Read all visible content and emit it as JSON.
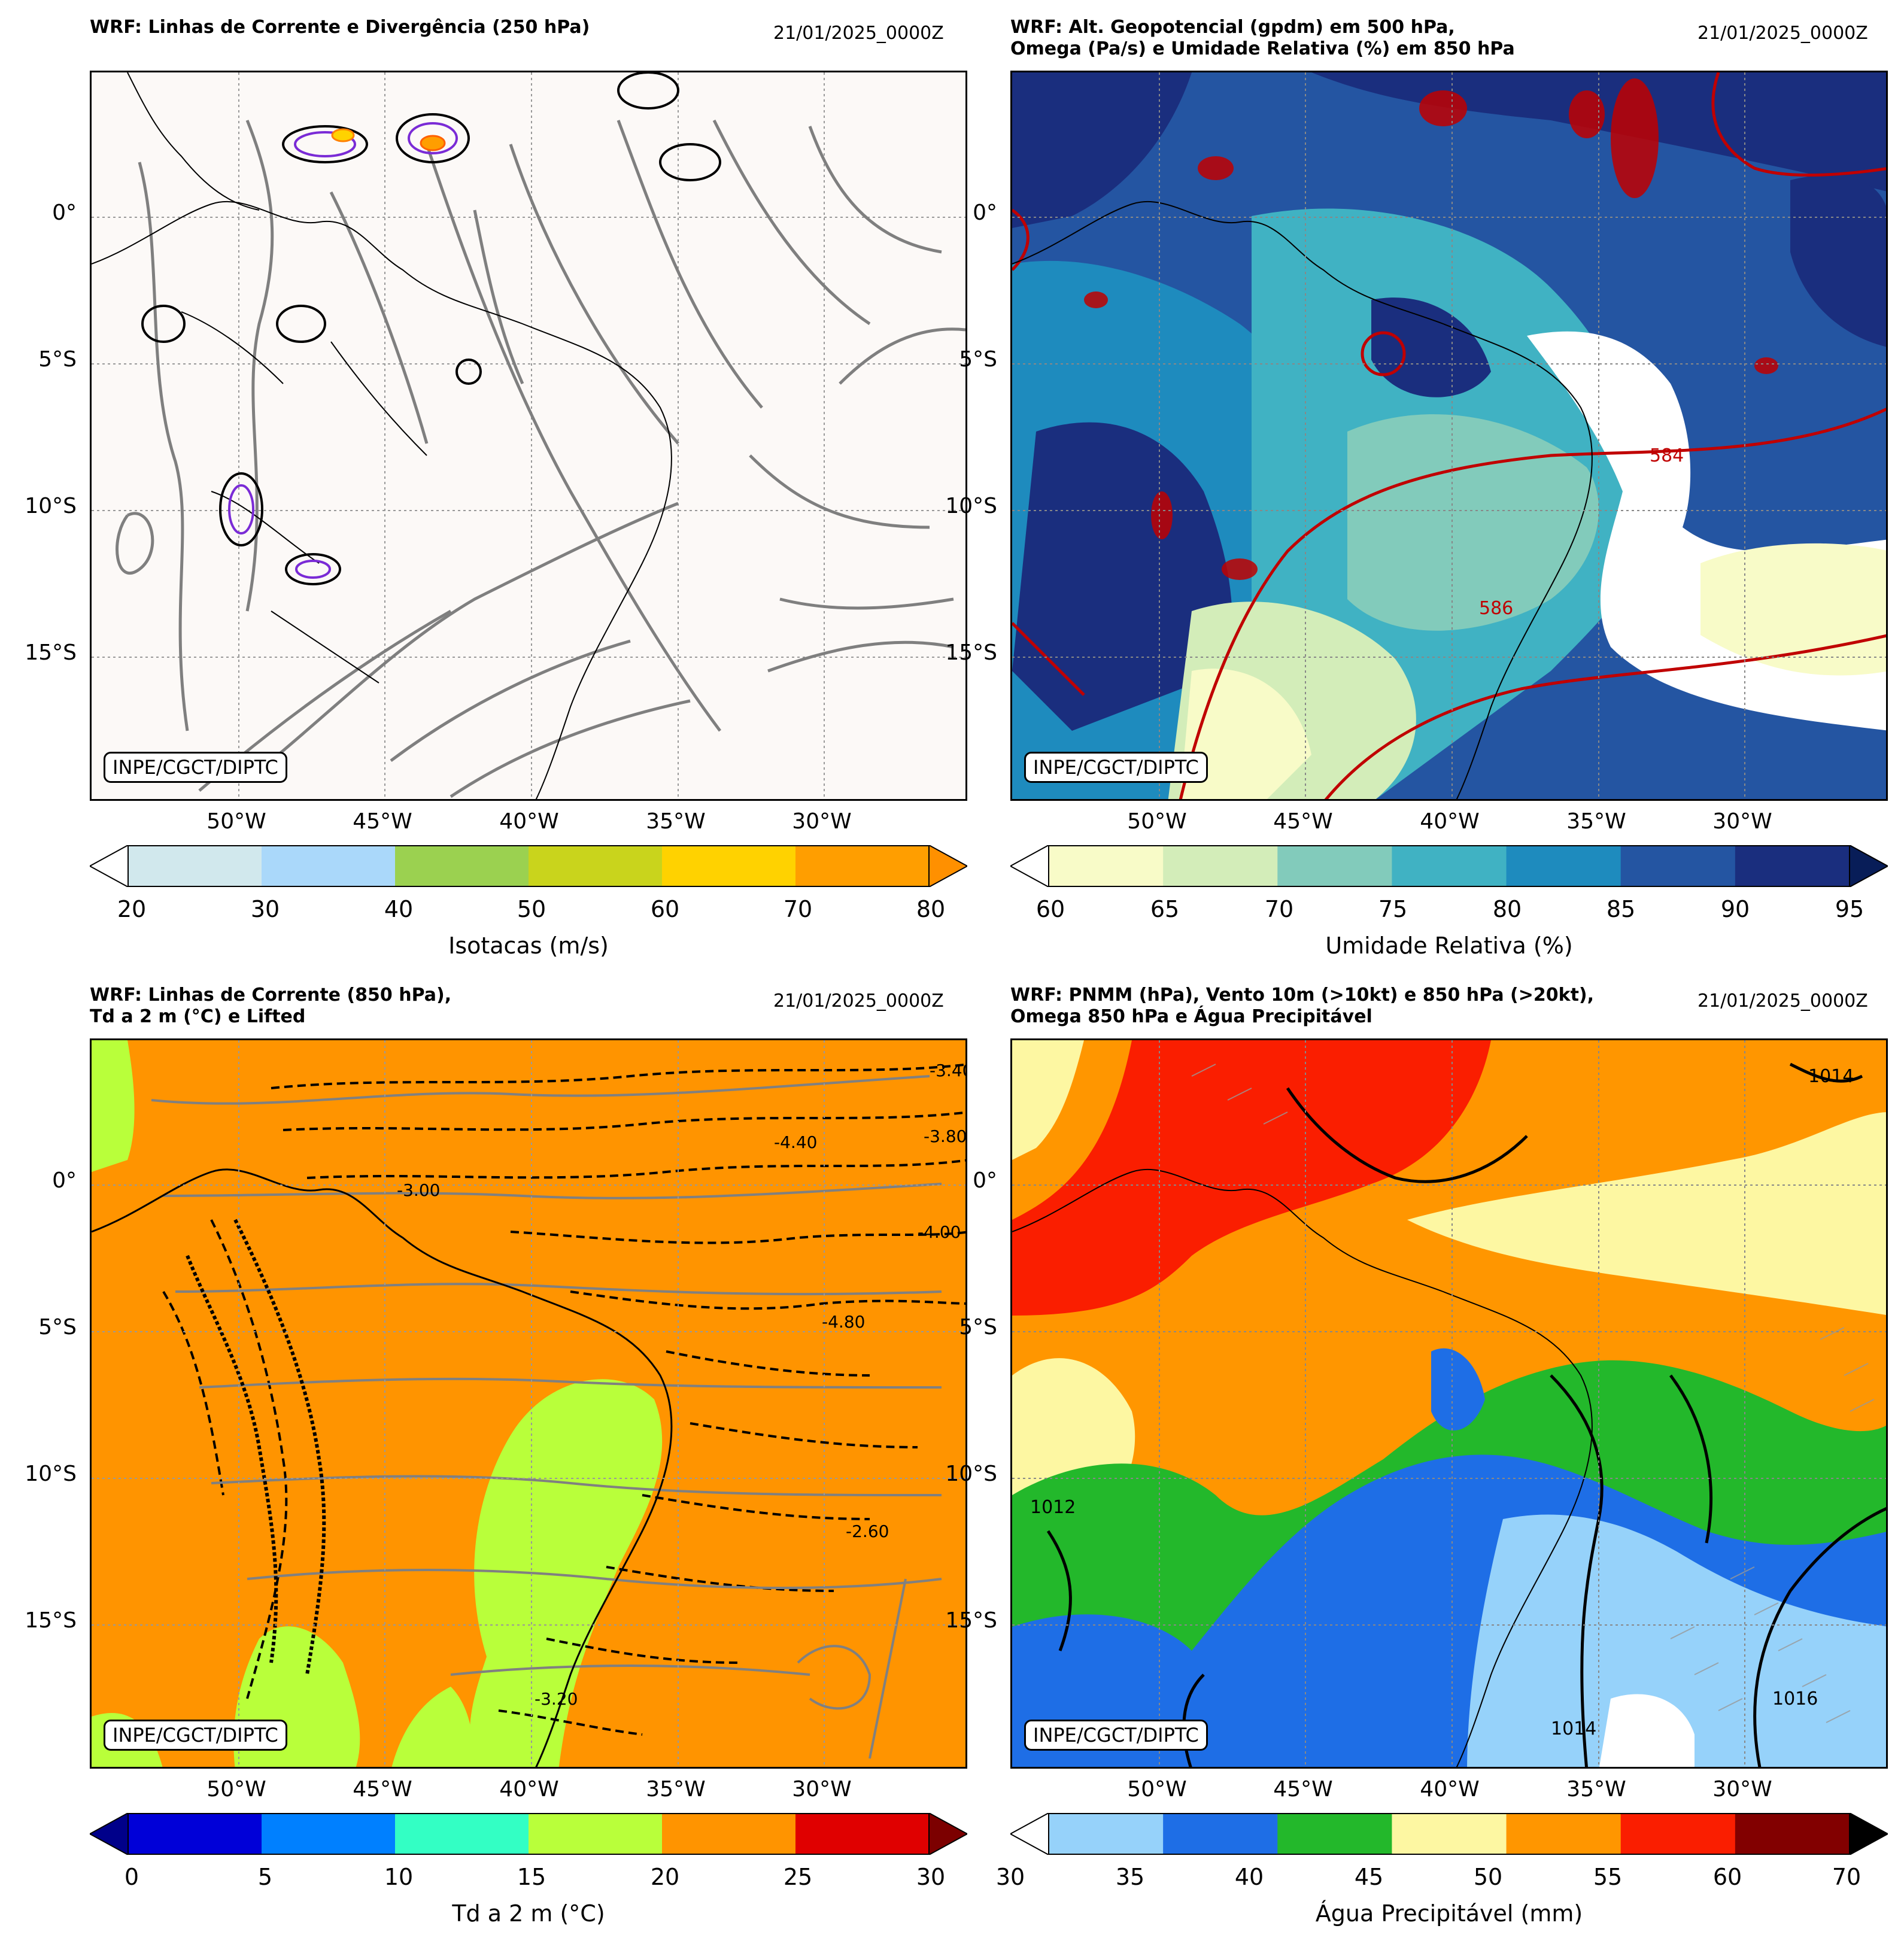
{
  "panels": [
    {
      "title": "WRF: Linhas de Corrente e Divergência (250 hPa)",
      "date": "21/01/2025_0000Z",
      "credit": "INPE/CGCT/DIPTC",
      "lat_labels": [
        "0°",
        "5°S",
        "10°S",
        "15°S"
      ],
      "lon_labels": [
        "50°W",
        "45°W",
        "40°W",
        "35°W",
        "30°W"
      ],
      "colorbar": {
        "label": "Isotacas (m/s)",
        "ticks": [
          "20",
          "30",
          "40",
          "50",
          "60",
          "70",
          "80"
        ],
        "colors": [
          "#d1e8ed",
          "#aad8fa",
          "#9bd150",
          "#c9d41c",
          "#ffd200",
          "#ff9e00"
        ],
        "under": "#ffffff",
        "over": "#ff9000"
      }
    },
    {
      "title": "WRF: Alt. Geopotencial (gpdm) em 500 hPa,\nOmega (Pa/s) e Umidade Relativa (%) em 850 hPa",
      "date": "21/01/2025_0000Z",
      "credit": "INPE/CGCT/DIPTC",
      "lat_labels": [
        "0°",
        "5°S",
        "10°S",
        "15°S"
      ],
      "lon_labels": [
        "50°W",
        "45°W",
        "40°W",
        "35°W",
        "30°W"
      ],
      "contour_labels": [
        "584",
        "586"
      ],
      "colorbar": {
        "label": "Umidade Relativa (%)",
        "ticks": [
          "60",
          "65",
          "70",
          "75",
          "80",
          "85",
          "90",
          "95"
        ],
        "colors": [
          "#f8fbc8",
          "#d3edb9",
          "#82cbbb",
          "#40b2c3",
          "#1e8bbe",
          "#2455a2",
          "#1a2e7e"
        ],
        "under": "#ffffff",
        "over": "#081d58"
      }
    },
    {
      "title": "WRF: Linhas de Corrente (850 hPa),\nTd a 2 m (°C) e Lifted",
      "date": "21/01/2025_0000Z",
      "credit": "INPE/CGCT/DIPTC",
      "lat_labels": [
        "0°",
        "5°S",
        "10°S",
        "15°S"
      ],
      "lon_labels": [
        "50°W",
        "45°W",
        "40°W",
        "35°W",
        "30°W"
      ],
      "contour_labels": [
        "-3.40",
        "-3.80",
        "-4.00",
        "-3.00",
        "-4.40",
        "-4.80",
        "-2.60",
        "-3.20"
      ],
      "colorbar": {
        "label": "Td a 2 m (°C)",
        "ticks": [
          "0",
          "5",
          "10",
          "15",
          "20",
          "25",
          "30"
        ],
        "colors": [
          "#0000d8",
          "#0080ff",
          "#33ffc4",
          "#b9ff3a",
          "#ff9400",
          "#e00000"
        ],
        "under": "#00008a",
        "over": "#7c0000"
      }
    },
    {
      "title": "WRF: PNMM (hPa), Vento 10m (>10kt) e 850 hPa (>20kt),\nOmega 850 hPa e Água Precipitável",
      "date": "21/01/2025_0000Z",
      "credit": "INPE/CGCT/DIPTC",
      "lat_labels": [
        "0°",
        "5°S",
        "10°S",
        "15°S"
      ],
      "lon_labels": [
        "50°W",
        "45°W",
        "40°W",
        "35°W",
        "30°W"
      ],
      "contour_labels": [
        "1014",
        "1012",
        "1016"
      ],
      "colorbar": {
        "label": "Água Precipitável (mm)",
        "ticks": [
          "30",
          "35",
          "40",
          "45",
          "50",
          "55",
          "60",
          "70"
        ],
        "colors": [
          "#96d2fa",
          "#1e6ee6",
          "#23b82b",
          "#fdf7a2",
          "#ff9600",
          "#fa1e00",
          "#820000"
        ],
        "under": "#ffffff",
        "over": "#000000"
      }
    }
  ]
}
